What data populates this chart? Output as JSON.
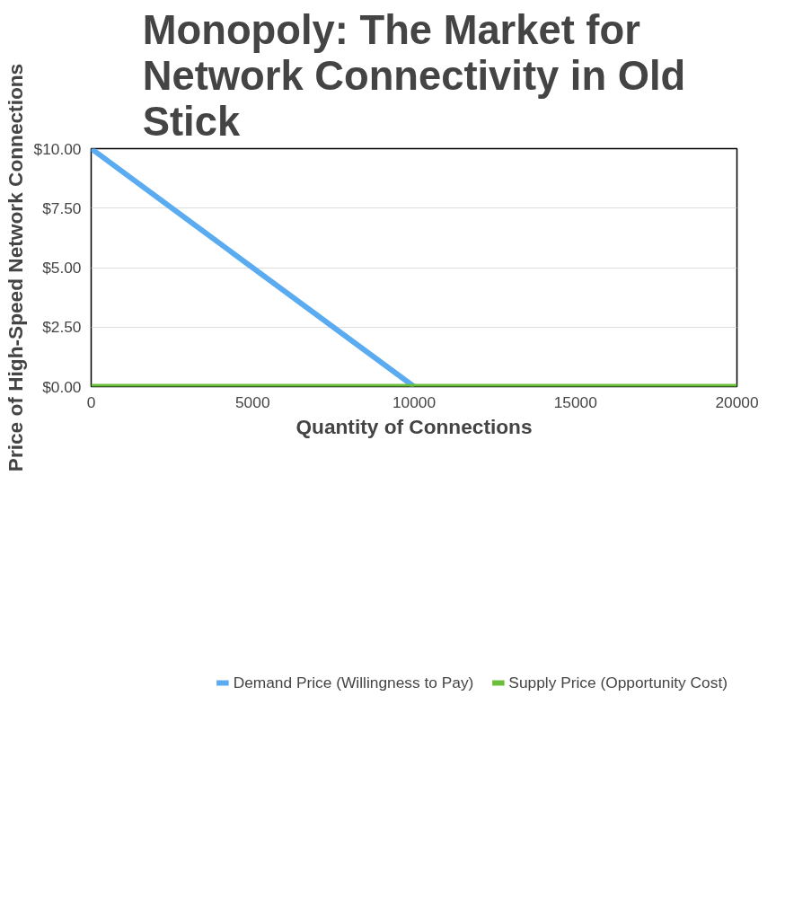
{
  "chart_data": {
    "type": "line",
    "title": "Monopoly: The Market for Network Connectivity in Old Stick",
    "xlabel": "Quantity of Connections",
    "ylabel": "Price of High-Speed Network Connections",
    "series": [
      {
        "name": "Demand Price (Willingness to Pay)",
        "color": "#5aabf0",
        "x": [
          0,
          10000
        ],
        "values": [
          10,
          0
        ]
      },
      {
        "name": "Supply Price (Opportunity Cost)",
        "color": "#6abf3a",
        "x": [
          0,
          20000
        ],
        "values": [
          0,
          0
        ]
      }
    ],
    "xlim": [
      0,
      20000
    ],
    "xticks": [
      0,
      5000,
      10000,
      15000,
      20000
    ],
    "ylim": [
      0,
      10
    ],
    "yticks": [
      {
        "value": 0,
        "label": "$0.00"
      },
      {
        "value": 2.5,
        "label": "$2.50"
      },
      {
        "value": 5,
        "label": "$5.00"
      },
      {
        "value": 7.5,
        "label": "$7.50"
      },
      {
        "value": 10,
        "label": "$10.00"
      }
    ],
    "grid": "y",
    "legend": "bottom",
    "marker": "none",
    "line_style": "solid"
  }
}
